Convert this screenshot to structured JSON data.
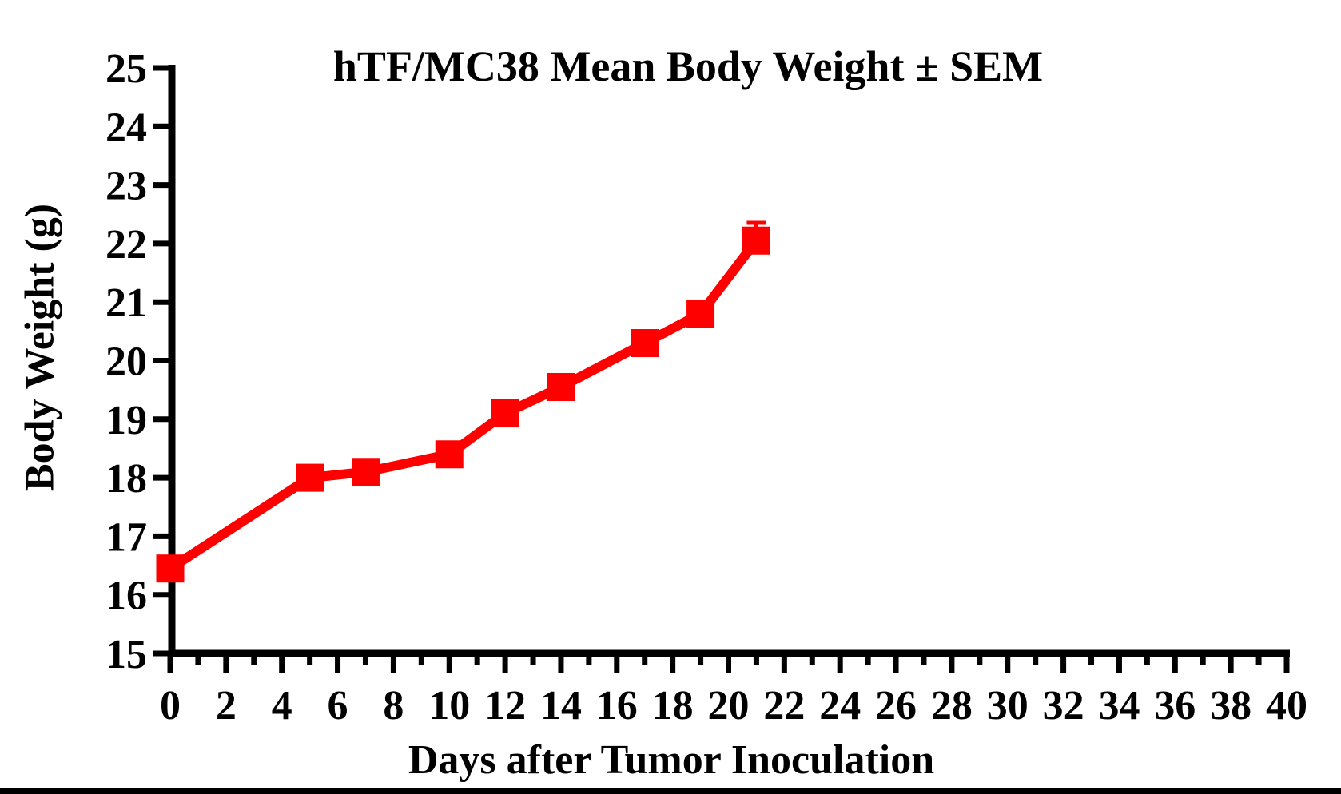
{
  "chart_data": {
    "type": "line",
    "title": "hTF/MC38 Mean Body Weight ± SEM",
    "xlabel": "Days after Tumor Inoculation",
    "ylabel": "Body Weight (g)",
    "xlim": [
      0,
      40
    ],
    "ylim": [
      15,
      25
    ],
    "grid": false,
    "legend_position": "none",
    "x_major_tick_step": 2,
    "x_minor_tick_step": 1,
    "y_major_tick_step": 1,
    "x_tick_labels": [
      "0",
      "2",
      "4",
      "6",
      "8",
      "10",
      "12",
      "14",
      "16",
      "18",
      "20",
      "22",
      "24",
      "26",
      "28",
      "30",
      "32",
      "34",
      "36",
      "38",
      "40"
    ],
    "y_tick_labels": [
      "15",
      "16",
      "17",
      "18",
      "19",
      "20",
      "21",
      "22",
      "23",
      "24",
      "25"
    ],
    "series": [
      {
        "name": "hTF/MC38 mean body weight",
        "marker": "square",
        "color": "#FF0000",
        "x": [
          0,
          5,
          7,
          10,
          12,
          14,
          17,
          19,
          21
        ],
        "y": [
          16.45,
          18.0,
          18.1,
          18.4,
          19.1,
          19.55,
          20.3,
          20.8,
          22.05
        ],
        "sem_upper": [
          0,
          0,
          0,
          0,
          0,
          0,
          0,
          0,
          0.33
        ]
      }
    ]
  },
  "colors": {
    "series": "#FF0000",
    "axis": "#000000",
    "background": "#FFFFFF"
  }
}
